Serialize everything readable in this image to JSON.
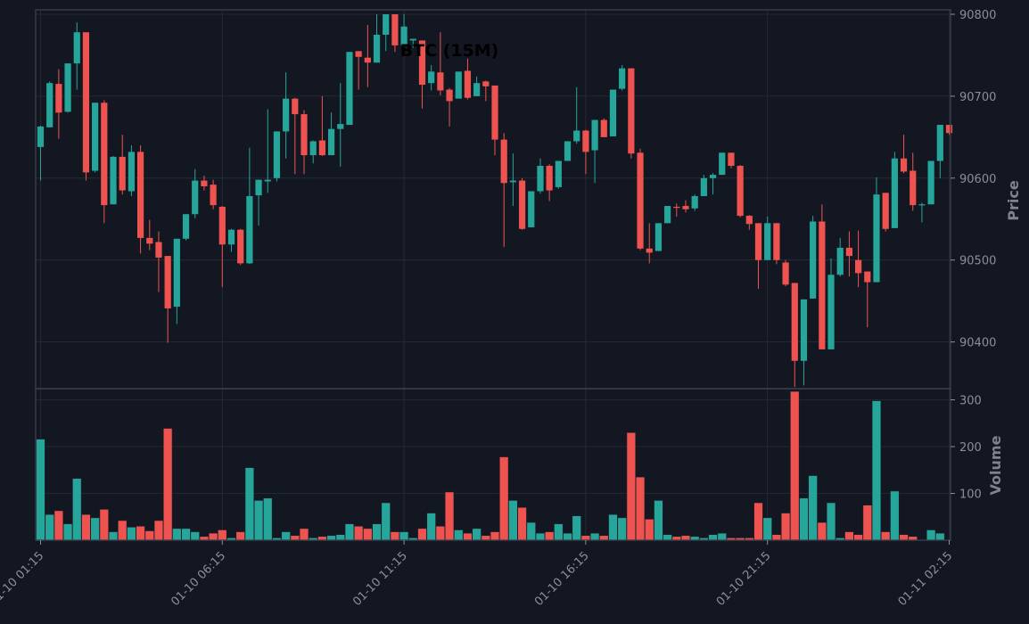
{
  "chart_data": {
    "type": "candlestick",
    "title": "BTC (15M)",
    "price_panel": {
      "ylabel": "Price",
      "yticks": [
        90400,
        90500,
        90600,
        90700,
        90800
      ],
      "ylim": [
        90343,
        90800
      ]
    },
    "volume_panel": {
      "ylabel": "Volume",
      "yticks": [
        100,
        200,
        300
      ],
      "ylim": [
        0,
        320
      ]
    },
    "x_tick_labels": [
      "01-10 01:15",
      "01-10 06:15",
      "01-10 11:15",
      "01-10 16:15",
      "01-10 21:15",
      "01-11 02:15"
    ],
    "x_tick_indices": [
      0,
      20,
      40,
      60,
      80,
      100
    ],
    "colors": {
      "background": "#131722",
      "up": "#26a69a",
      "down": "#ef5350",
      "grid": "#2a2e39",
      "axis_text": "#8a8f9c",
      "frame": "#3a3f4b"
    },
    "candles": [
      [
        90638,
        90663,
        90597,
        90664
      ],
      [
        90662,
        90716,
        90662,
        90718
      ],
      [
        90715,
        90680,
        90648,
        90733
      ],
      [
        90681,
        90740,
        90680,
        90740
      ],
      [
        90740,
        90778,
        90708,
        90790
      ],
      [
        90778,
        90607,
        90597,
        90778
      ],
      [
        90609,
        90692,
        90607,
        90692
      ],
      [
        90692,
        90567,
        90545,
        90695
      ],
      [
        90568,
        90626,
        90568,
        90627
      ],
      [
        90626,
        90585,
        90580,
        90653
      ],
      [
        90584,
        90632,
        90578,
        90640
      ],
      [
        90632,
        90527,
        90508,
        90640
      ],
      [
        90527,
        90520,
        90512,
        90549
      ],
      [
        90522,
        90503,
        90461,
        90535
      ],
      [
        90505,
        90441,
        90399,
        90505
      ],
      [
        90443,
        90526,
        90422,
        90526
      ],
      [
        90526,
        90556,
        90524,
        90556
      ],
      [
        90556,
        90597,
        90551,
        90611
      ],
      [
        90597,
        90590,
        90585,
        90603
      ],
      [
        90592,
        90567,
        90562,
        90598
      ],
      [
        90565,
        90519,
        90467,
        90566
      ],
      [
        90519,
        90537,
        90510,
        90538
      ],
      [
        90537,
        90496,
        90494,
        90538
      ],
      [
        90496,
        90578,
        90495,
        90637
      ],
      [
        90579,
        90598,
        90542,
        90598
      ],
      [
        90596,
        90598,
        90582,
        90684
      ],
      [
        90600,
        90657,
        90596,
        90657
      ],
      [
        90657,
        90697,
        90624,
        90729
      ],
      [
        90697,
        90678,
        90605,
        90698
      ],
      [
        90678,
        90628,
        90605,
        90683
      ],
      [
        90628,
        90645,
        90618,
        90646
      ],
      [
        90646,
        90628,
        90627,
        90700
      ],
      [
        90628,
        90660,
        90628,
        90680
      ],
      [
        90660,
        90666,
        90614,
        90716
      ],
      [
        90665,
        90754,
        90665,
        90754
      ],
      [
        90755,
        90748,
        90708,
        90755
      ],
      [
        90747,
        90741,
        90711,
        90787
      ],
      [
        90741,
        90775,
        90741,
        90800
      ],
      [
        90775,
        90800,
        90755,
        90800
      ],
      [
        90800,
        90762,
        90754,
        90800
      ],
      [
        90762,
        90785,
        90749,
        90800
      ],
      [
        90768,
        90770,
        90759,
        90770
      ],
      [
        90768,
        90714,
        90685,
        90768
      ],
      [
        90716,
        90730,
        90707,
        90738
      ],
      [
        90729,
        90707,
        90701,
        90778
      ],
      [
        90708,
        90694,
        90663,
        90710
      ],
      [
        90697,
        90730,
        90698,
        90730
      ],
      [
        90731,
        90698,
        90696,
        90746
      ],
      [
        90700,
        90716,
        90700,
        90724
      ],
      [
        90718,
        90712,
        90694,
        90719
      ],
      [
        90713,
        90647,
        90628,
        90713
      ],
      [
        90647,
        90594,
        90516,
        90655
      ],
      [
        90595,
        90597,
        90566,
        90630
      ],
      [
        90597,
        90538,
        90537,
        90600
      ],
      [
        90540,
        90584,
        90540,
        90584
      ],
      [
        90584,
        90615,
        90581,
        90624
      ],
      [
        90615,
        90585,
        90572,
        90617
      ],
      [
        90589,
        90621,
        90587,
        90621
      ],
      [
        90621,
        90645,
        90621,
        90645
      ],
      [
        90645,
        90658,
        90642,
        90711
      ],
      [
        90658,
        90632,
        90605,
        90659
      ],
      [
        90634,
        90671,
        90594,
        90671
      ],
      [
        90671,
        90650,
        90650,
        90673
      ],
      [
        90651,
        90708,
        90651,
        90708
      ],
      [
        90709,
        90734,
        90707,
        90738
      ],
      [
        90734,
        90630,
        90624,
        90734
      ],
      [
        90631,
        90514,
        90512,
        90636
      ],
      [
        90514,
        90509,
        90496,
        90545
      ],
      [
        90511,
        90545,
        90511,
        90545
      ],
      [
        90545,
        90566,
        90545,
        90566
      ],
      [
        90565,
        90564,
        90553,
        90569
      ],
      [
        90566,
        90562,
        90558,
        90573
      ],
      [
        90563,
        90578,
        90560,
        90580
      ],
      [
        90578,
        90600,
        90578,
        90604
      ],
      [
        90600,
        90604,
        90580,
        90606
      ],
      [
        90604,
        90631,
        90604,
        90631
      ],
      [
        90631,
        90615,
        90612,
        90631
      ],
      [
        90615,
        90554,
        90552,
        90616
      ],
      [
        90554,
        90544,
        90537,
        90555
      ],
      [
        90545,
        90500,
        90465,
        90545
      ],
      [
        90500,
        90545,
        90500,
        90553
      ],
      [
        90545,
        90500,
        90495,
        90545
      ],
      [
        90497,
        90470,
        90468,
        90500
      ],
      [
        90472,
        90377,
        90345,
        90472
      ],
      [
        90377,
        90452,
        90347,
        90452
      ],
      [
        90453,
        90547,
        90453,
        90554
      ],
      [
        90547,
        90391,
        90391,
        90568
      ],
      [
        90391,
        90482,
        90391,
        90502
      ],
      [
        90482,
        90515,
        90480,
        90527
      ],
      [
        90515,
        90505,
        90480,
        90535
      ],
      [
        90500,
        90484,
        90467,
        90536
      ],
      [
        90486,
        90473,
        90418,
        90486
      ],
      [
        90473,
        90580,
        90473,
        90601
      ],
      [
        90582,
        90538,
        90535,
        90582
      ],
      [
        90539,
        90624,
        90539,
        90632
      ],
      [
        90624,
        90608,
        90606,
        90653
      ],
      [
        90609,
        90567,
        90560,
        90631
      ],
      [
        90568,
        90568,
        90546,
        90570
      ],
      [
        90568,
        90621,
        90568,
        90621
      ],
      [
        90621,
        90665,
        90600,
        90665
      ],
      [
        90665,
        90655,
        90653,
        90665
      ]
    ],
    "volume": [
      216,
      55,
      63,
      35,
      132,
      55,
      48,
      66,
      18,
      42,
      28,
      30,
      20,
      42,
      239,
      25,
      25,
      18,
      8,
      15,
      22,
      5,
      18,
      155,
      85,
      90,
      5,
      18,
      10,
      25,
      5,
      8,
      10,
      12,
      35,
      30,
      25,
      35,
      80,
      18,
      18,
      5,
      25,
      58,
      30,
      103,
      22,
      15,
      25,
      10,
      18,
      178,
      85,
      70,
      38,
      15,
      18,
      35,
      15,
      52,
      10,
      15,
      10,
      55,
      48,
      230,
      135,
      45,
      85,
      12,
      8,
      10,
      8,
      5,
      12,
      15,
      5,
      5,
      5,
      80,
      48,
      12,
      58,
      318,
      90,
      138,
      38,
      80,
      5,
      18,
      12,
      75,
      298,
      18,
      105,
      12,
      8,
      0,
      22,
      15,
      0
    ]
  }
}
